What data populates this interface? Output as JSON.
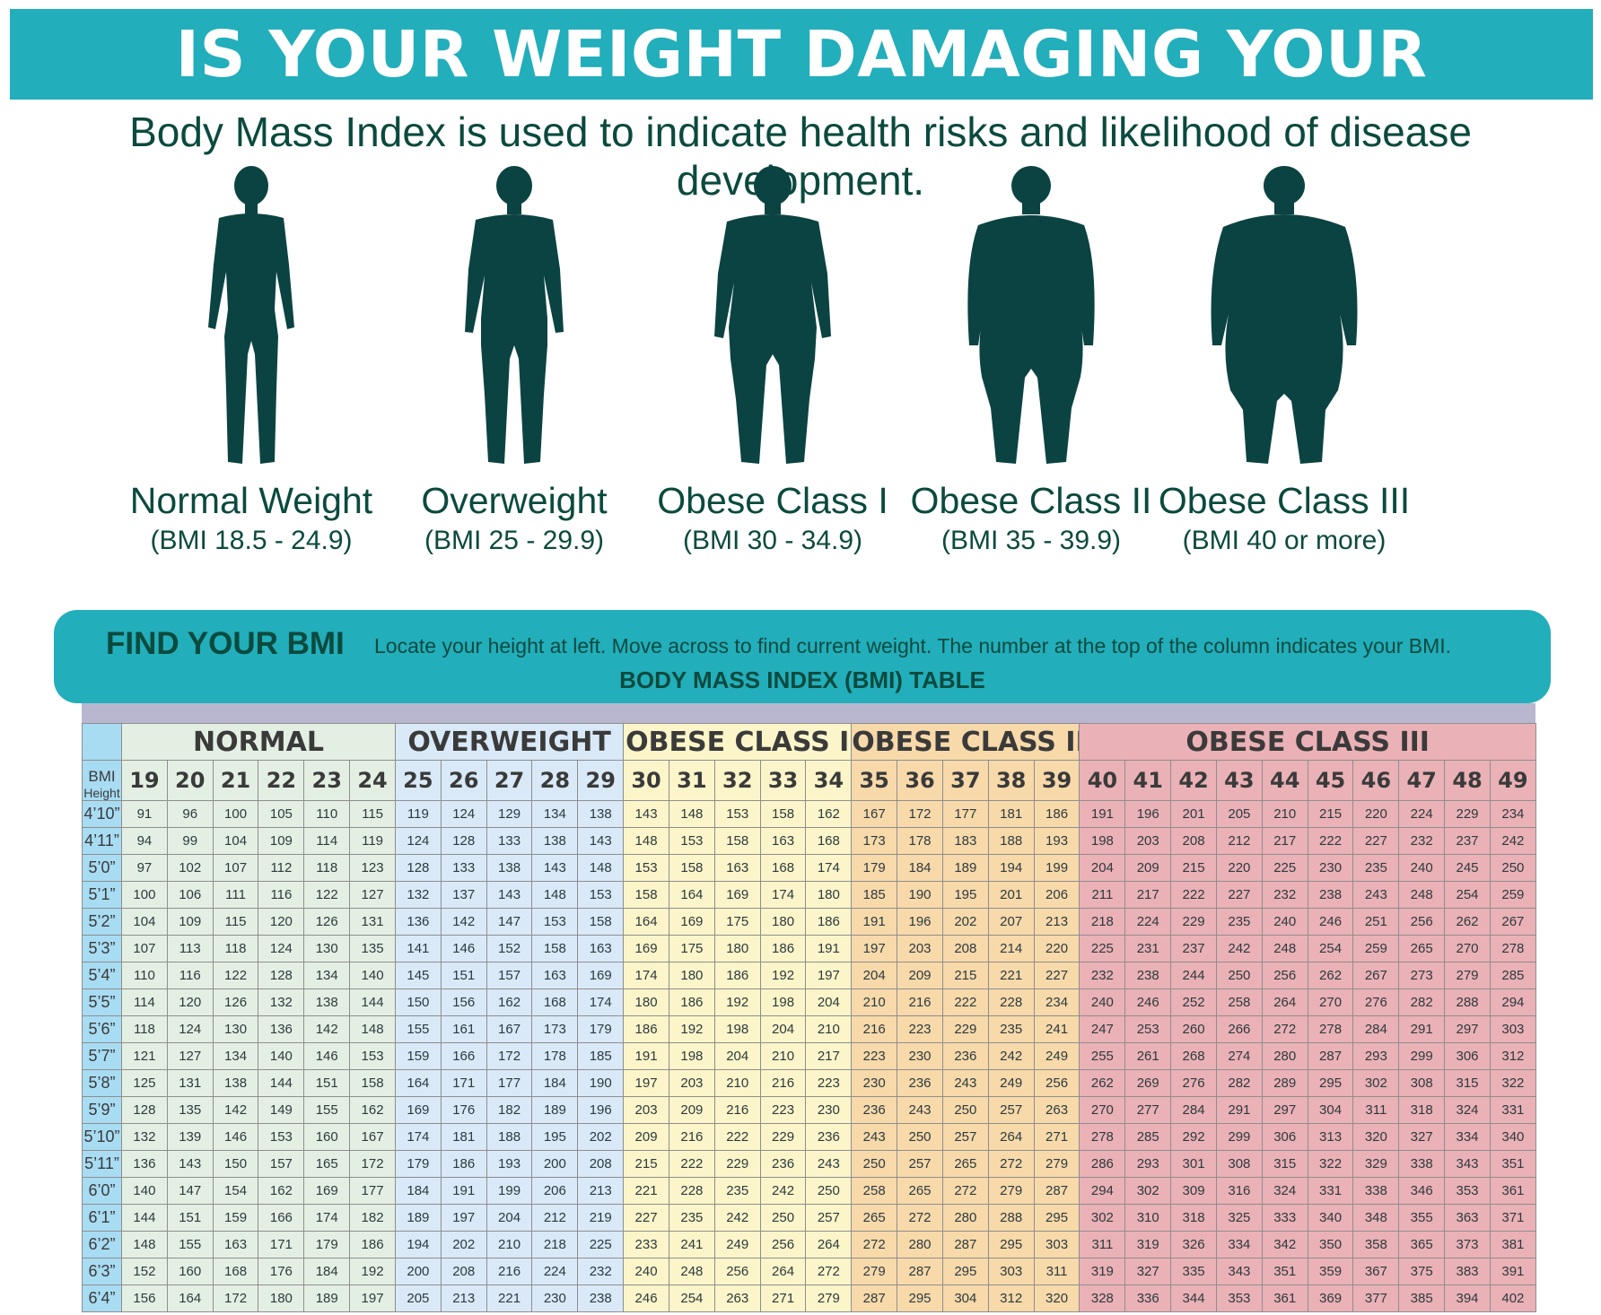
{
  "header": {
    "title": "IS YOUR WEIGHT DAMAGING YOUR HEALTH?",
    "subtitle": "Body Mass Index is used to indicate health risks and likelihood of disease development."
  },
  "figures": [
    {
      "label": "Normal Weight",
      "range": "(BMI 18.5 - 24.9)"
    },
    {
      "label": "Overweight",
      "range": "(BMI 25 - 29.9)"
    },
    {
      "label": "Obese Class I",
      "range": "(BMI 30 - 34.9)"
    },
    {
      "label": "Obese Class II",
      "range": "(BMI 35 - 39.9)"
    },
    {
      "label": "Obese Class III",
      "range": "(BMI 40 or more)"
    }
  ],
  "find": {
    "title": "FIND YOUR BMI",
    "instructions": "Locate your height at left. Move across to find current weight. The number at the top of the column indicates your BMI.",
    "table_title": "BODY MASS INDEX  (BMI) TABLE"
  },
  "table": {
    "bmi_label": "BMI",
    "height_label": "Height",
    "categories": [
      {
        "name": "NORMAL",
        "span": 6,
        "color": "#e4efe4"
      },
      {
        "name": "OVERWEIGHT",
        "span": 5,
        "color": "#d9e9f8"
      },
      {
        "name": "OBESE CLASS I",
        "span": 5,
        "color": "#fbf5c9"
      },
      {
        "name": "OBESE CLASS II",
        "span": 5,
        "color": "#f7d9aa"
      },
      {
        "name": "OBESE CLASS III",
        "span": 10,
        "color": "#eab1b6"
      }
    ],
    "bmi": [
      19,
      20,
      21,
      22,
      23,
      24,
      25,
      26,
      27,
      28,
      29,
      30,
      31,
      32,
      33,
      34,
      35,
      36,
      37,
      38,
      39,
      40,
      41,
      42,
      43,
      44,
      45,
      46,
      47,
      48,
      49
    ],
    "rows": [
      {
        "height": "4’10”",
        "weights": [
          91,
          96,
          100,
          105,
          110,
          115,
          119,
          124,
          129,
          134,
          138,
          143,
          148,
          153,
          158,
          162,
          167,
          172,
          177,
          181,
          186,
          191,
          196,
          201,
          205,
          210,
          215,
          220,
          224,
          229,
          234
        ]
      },
      {
        "height": "4’11”",
        "weights": [
          94,
          99,
          104,
          109,
          114,
          119,
          124,
          128,
          133,
          138,
          143,
          148,
          153,
          158,
          163,
          168,
          173,
          178,
          183,
          188,
          193,
          198,
          203,
          208,
          212,
          217,
          222,
          227,
          232,
          237,
          242
        ]
      },
      {
        "height": "5’0”",
        "weights": [
          97,
          102,
          107,
          112,
          118,
          123,
          128,
          133,
          138,
          143,
          148,
          153,
          158,
          163,
          168,
          174,
          179,
          184,
          189,
          194,
          199,
          204,
          209,
          215,
          220,
          225,
          230,
          235,
          240,
          245,
          250
        ]
      },
      {
        "height": "5’1”",
        "weights": [
          100,
          106,
          111,
          116,
          122,
          127,
          132,
          137,
          143,
          148,
          153,
          158,
          164,
          169,
          174,
          180,
          185,
          190,
          195,
          201,
          206,
          211,
          217,
          222,
          227,
          232,
          238,
          243,
          248,
          254,
          259
        ]
      },
      {
        "height": "5’2”",
        "weights": [
          104,
          109,
          115,
          120,
          126,
          131,
          136,
          142,
          147,
          153,
          158,
          164,
          169,
          175,
          180,
          186,
          191,
          196,
          202,
          207,
          213,
          218,
          224,
          229,
          235,
          240,
          246,
          251,
          256,
          262,
          267
        ]
      },
      {
        "height": "5’3”",
        "weights": [
          107,
          113,
          118,
          124,
          130,
          135,
          141,
          146,
          152,
          158,
          163,
          169,
          175,
          180,
          186,
          191,
          197,
          203,
          208,
          214,
          220,
          225,
          231,
          237,
          242,
          248,
          254,
          259,
          265,
          270,
          278
        ]
      },
      {
        "height": "5’4”",
        "weights": [
          110,
          116,
          122,
          128,
          134,
          140,
          145,
          151,
          157,
          163,
          169,
          174,
          180,
          186,
          192,
          197,
          204,
          209,
          215,
          221,
          227,
          232,
          238,
          244,
          250,
          256,
          262,
          267,
          273,
          279,
          285
        ]
      },
      {
        "height": "5’5”",
        "weights": [
          114,
          120,
          126,
          132,
          138,
          144,
          150,
          156,
          162,
          168,
          174,
          180,
          186,
          192,
          198,
          204,
          210,
          216,
          222,
          228,
          234,
          240,
          246,
          252,
          258,
          264,
          270,
          276,
          282,
          288,
          294
        ]
      },
      {
        "height": "5’6”",
        "weights": [
          118,
          124,
          130,
          136,
          142,
          148,
          155,
          161,
          167,
          173,
          179,
          186,
          192,
          198,
          204,
          210,
          216,
          223,
          229,
          235,
          241,
          247,
          253,
          260,
          266,
          272,
          278,
          284,
          291,
          297,
          303
        ]
      },
      {
        "height": "5’7”",
        "weights": [
          121,
          127,
          134,
          140,
          146,
          153,
          159,
          166,
          172,
          178,
          185,
          191,
          198,
          204,
          210,
          217,
          223,
          230,
          236,
          242,
          249,
          255,
          261,
          268,
          274,
          280,
          287,
          293,
          299,
          306,
          312
        ]
      },
      {
        "height": "5’8”",
        "weights": [
          125,
          131,
          138,
          144,
          151,
          158,
          164,
          171,
          177,
          184,
          190,
          197,
          203,
          210,
          216,
          223,
          230,
          236,
          243,
          249,
          256,
          262,
          269,
          276,
          282,
          289,
          295,
          302,
          308,
          315,
          322
        ]
      },
      {
        "height": "5’9”",
        "weights": [
          128,
          135,
          142,
          149,
          155,
          162,
          169,
          176,
          182,
          189,
          196,
          203,
          209,
          216,
          223,
          230,
          236,
          243,
          250,
          257,
          263,
          270,
          277,
          284,
          291,
          297,
          304,
          311,
          318,
          324,
          331
        ]
      },
      {
        "height": "5’10”",
        "weights": [
          132,
          139,
          146,
          153,
          160,
          167,
          174,
          181,
          188,
          195,
          202,
          209,
          216,
          222,
          229,
          236,
          243,
          250,
          257,
          264,
          271,
          278,
          285,
          292,
          299,
          306,
          313,
          320,
          327,
          334,
          340
        ]
      },
      {
        "height": "5’11”",
        "weights": [
          136,
          143,
          150,
          157,
          165,
          172,
          179,
          186,
          193,
          200,
          208,
          215,
          222,
          229,
          236,
          243,
          250,
          257,
          265,
          272,
          279,
          286,
          293,
          301,
          308,
          315,
          322,
          329,
          338,
          343,
          351
        ]
      },
      {
        "height": "6’0”",
        "weights": [
          140,
          147,
          154,
          162,
          169,
          177,
          184,
          191,
          199,
          206,
          213,
          221,
          228,
          235,
          242,
          250,
          258,
          265,
          272,
          279,
          287,
          294,
          302,
          309,
          316,
          324,
          331,
          338,
          346,
          353,
          361
        ]
      },
      {
        "height": "6’1”",
        "weights": [
          144,
          151,
          159,
          166,
          174,
          182,
          189,
          197,
          204,
          212,
          219,
          227,
          235,
          242,
          250,
          257,
          265,
          272,
          280,
          288,
          295,
          302,
          310,
          318,
          325,
          333,
          340,
          348,
          355,
          363,
          371
        ]
      },
      {
        "height": "6’2”",
        "weights": [
          148,
          155,
          163,
          171,
          179,
          186,
          194,
          202,
          210,
          218,
          225,
          233,
          241,
          249,
          256,
          264,
          272,
          280,
          287,
          295,
          303,
          311,
          319,
          326,
          334,
          342,
          350,
          358,
          365,
          373,
          381
        ]
      },
      {
        "height": "6’3”",
        "weights": [
          152,
          160,
          168,
          176,
          184,
          192,
          200,
          208,
          216,
          224,
          232,
          240,
          248,
          256,
          264,
          272,
          279,
          287,
          295,
          303,
          311,
          319,
          327,
          335,
          343,
          351,
          359,
          367,
          375,
          383,
          391
        ]
      },
      {
        "height": "6’4”",
        "weights": [
          156,
          164,
          172,
          180,
          189,
          197,
          205,
          213,
          221,
          230,
          238,
          246,
          254,
          263,
          271,
          279,
          287,
          295,
          304,
          312,
          320,
          328,
          336,
          344,
          353,
          361,
          369,
          377,
          385,
          394,
          402
        ]
      }
    ]
  },
  "colors": {
    "banner": "#22aebb",
    "silhouette": "#0b4342",
    "text": "#0b4a3e",
    "height_column": "#a8dcf3"
  }
}
